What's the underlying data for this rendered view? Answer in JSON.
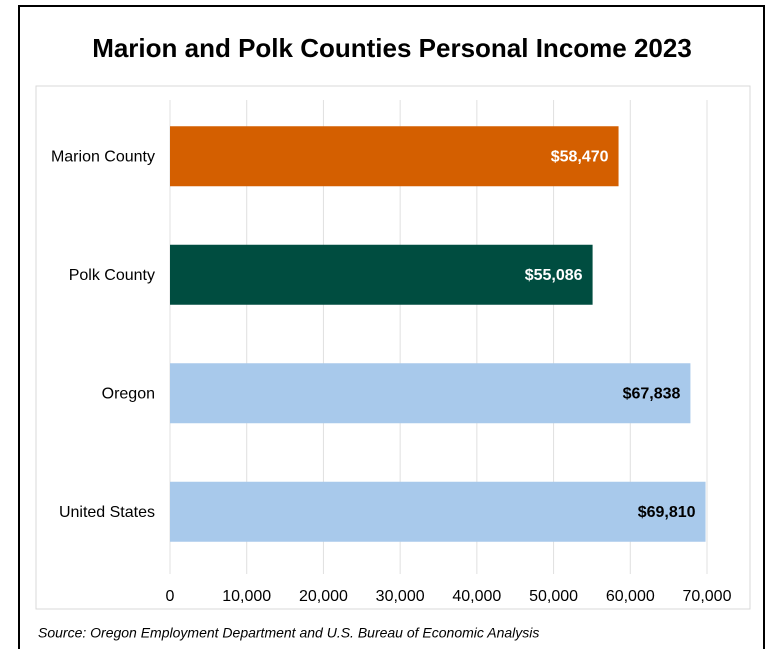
{
  "chart_data": {
    "type": "bar",
    "orientation": "horizontal",
    "title": "Marion and Polk Counties Personal Income 2023",
    "categories": [
      "Marion County",
      "Polk County",
      "Oregon",
      "United States"
    ],
    "values": [
      58470,
      55086,
      67838,
      69810
    ],
    "value_labels": [
      "$58,470",
      "$55,086",
      "$67,838",
      "$69,810"
    ],
    "colors": [
      "#d45f00",
      "#004d40",
      "#a8c9eb",
      "#a8c9eb"
    ],
    "label_colors": [
      "#ffffff",
      "#ffffff",
      "#000000",
      "#000000"
    ],
    "xlim": [
      0,
      70000
    ],
    "xticks": [
      0,
      {
        "value": 10000,
        "label": "10,000"
      },
      {
        "value": 20000,
        "label": "20,000"
      },
      {
        "value": 30000,
        "label": "30,000"
      },
      {
        "value": 40000,
        "label": "40,000"
      },
      {
        "value": 50000,
        "label": "50,000"
      },
      {
        "value": 60000,
        "label": "60,000"
      },
      {
        "value": 70000,
        "label": "70,000"
      }
    ],
    "grid": true,
    "source": "Source: Oregon Employment Department and U.S. Bureau of Economic Analysis"
  }
}
